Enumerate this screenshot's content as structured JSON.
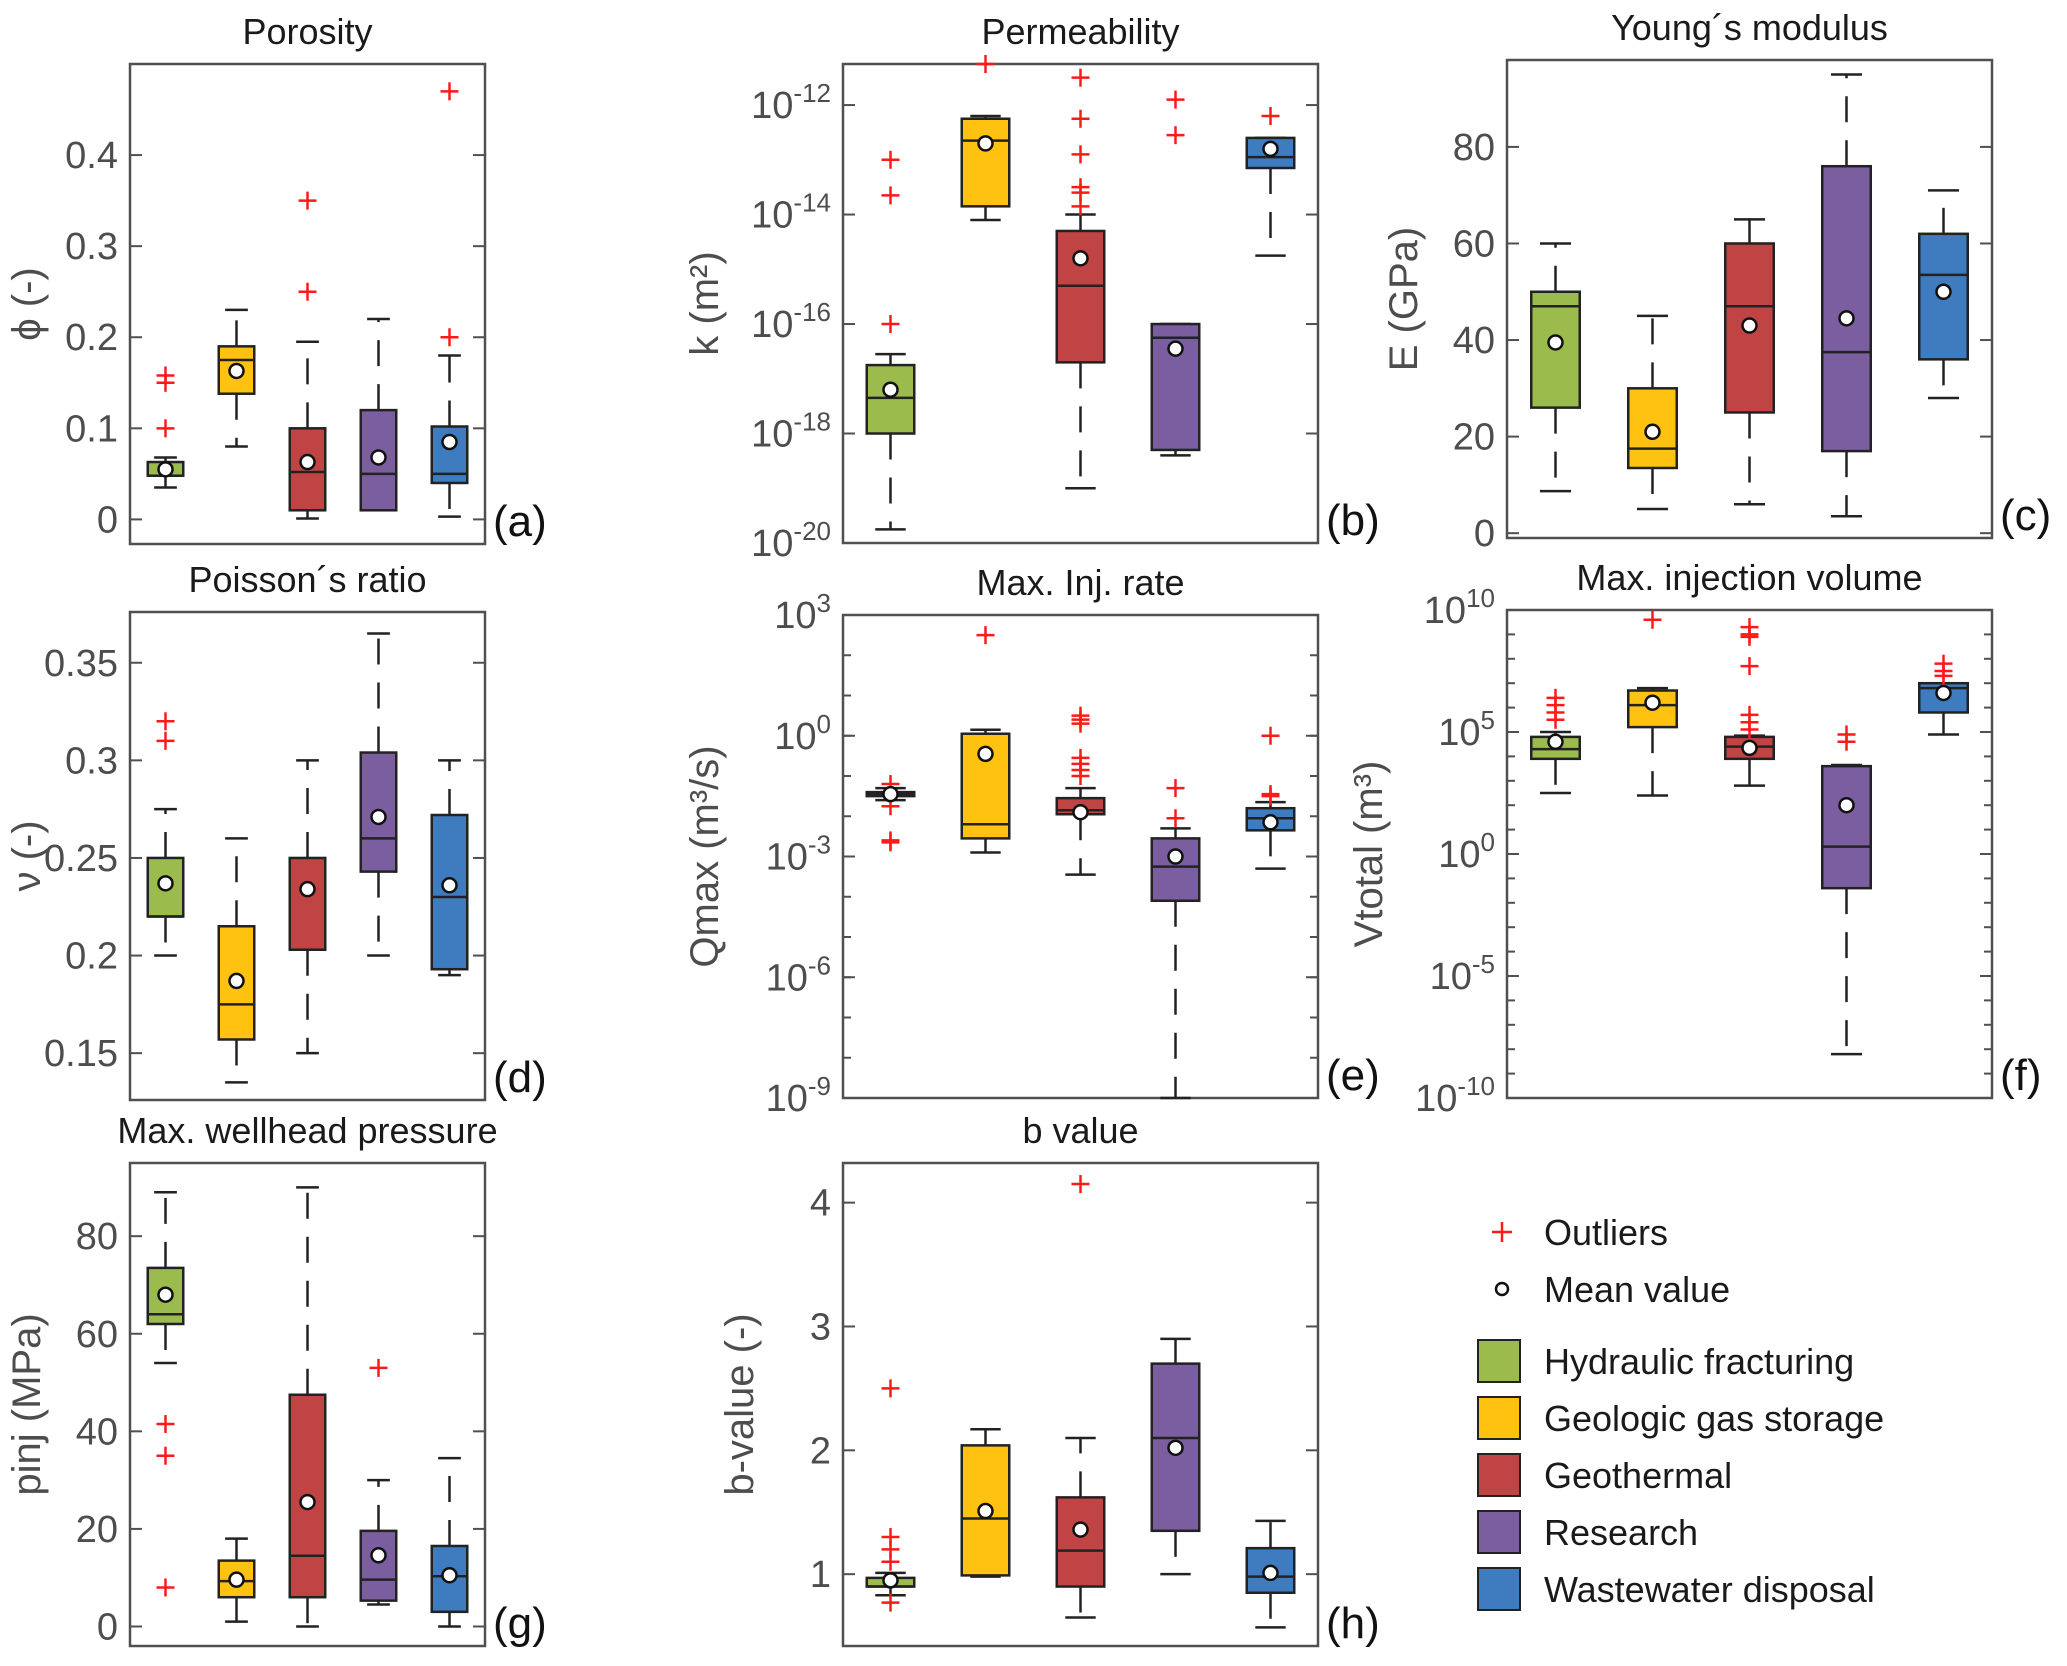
{
  "chart_data": {
    "type": "box",
    "groups": [
      {
        "name": "Hydraulic fracturing",
        "color": "#9BBB4D"
      },
      {
        "name": "Geologic gas storage",
        "color": "#FFC210"
      },
      {
        "name": "Geothermal",
        "color": "#C04444"
      },
      {
        "name": "Research",
        "color": "#7B5EA0"
      },
      {
        "name": "Wastewater disposal",
        "color": "#3F7BBF"
      }
    ],
    "legend": {
      "placement": "bottom-right",
      "outliers_label": "Outliers",
      "mean_label": "Mean value",
      "outlier_color": "#FF1A1A"
    },
    "panels": [
      {
        "id": "a",
        "title": "Porosity",
        "label": "(a)",
        "ylabel": "ϕ (-)",
        "scale": "linear",
        "ylim": [
          -0.027,
          0.5
        ],
        "yticks": [
          0,
          0.1,
          0.2,
          0.3,
          0.4
        ],
        "ytick_labels": [
          "0",
          "0.1",
          "0.2",
          "0.3",
          "0.4"
        ],
        "boxes": [
          {
            "whislo": 0.035,
            "q1": 0.048,
            "med": 0.048,
            "q3": 0.063,
            "whishi": 0.068,
            "mean": 0.055,
            "outliers": [
              0.1,
              0.15,
              0.158
            ]
          },
          {
            "whislo": 0.08,
            "q1": 0.138,
            "med": 0.175,
            "q3": 0.19,
            "whishi": 0.23,
            "mean": 0.163,
            "outliers": []
          },
          {
            "whislo": 0.001,
            "q1": 0.01,
            "med": 0.052,
            "q3": 0.1,
            "whishi": 0.195,
            "mean": 0.063,
            "outliers": [
              0.25,
              0.35
            ]
          },
          {
            "whislo": 0.01,
            "q1": 0.01,
            "med": 0.05,
            "q3": 0.12,
            "whishi": 0.22,
            "mean": 0.068,
            "outliers": []
          },
          {
            "whislo": 0.003,
            "q1": 0.04,
            "med": 0.05,
            "q3": 0.102,
            "whishi": 0.18,
            "mean": 0.085,
            "outliers": [
              0.2,
              0.47
            ]
          }
        ]
      },
      {
        "id": "b",
        "title": "Permeability",
        "label": "(b)",
        "ylabel": "k (m²)",
        "scale": "log",
        "ylim_log10": [
          -20,
          -11.25
        ],
        "yticks_log10": [
          -20,
          -18,
          -16,
          -14,
          -12
        ],
        "ytick_labels": [
          "10^-20",
          "10^-18",
          "10^-16",
          "10^-14",
          "10^-12"
        ],
        "boxes": [
          {
            "whislo": -19.75,
            "q1": -18,
            "med": -17.35,
            "q3": -16.75,
            "whishi": -16.55,
            "mean": -17.2,
            "outliers": [
              -16,
              -13.65,
              -13
            ]
          },
          {
            "whislo": -14.1,
            "q1": -13.85,
            "med": -12.65,
            "q3": -12.25,
            "whishi": -12.2,
            "mean": -12.7,
            "outliers": [
              -11.25
            ]
          },
          {
            "whislo": -19,
            "q1": -16.7,
            "med": -15.3,
            "q3": -14.3,
            "whishi": -14,
            "mean": -14.8,
            "outliers": [
              -11.5,
              -12.25,
              -12.9,
              -13.5,
              -13.6,
              -13.85
            ]
          },
          {
            "whislo": -18.4,
            "q1": -18.3,
            "med": -16.25,
            "q3": -16,
            "whishi": -16,
            "mean": -16.45,
            "outliers": [
              -11.9,
              -12.55
            ]
          },
          {
            "whislo": -14.75,
            "q1": -13.15,
            "med": -12.95,
            "q3": -12.6,
            "whishi": -12.6,
            "mean": -12.8,
            "outliers": [
              -12.2
            ]
          }
        ]
      },
      {
        "id": "c",
        "title": "Young´s modulus",
        "label": "(c)",
        "ylabel": "E (GPa)",
        "scale": "linear",
        "ylim": [
          -1,
          98
        ],
        "yticks": [
          0,
          20,
          40,
          60,
          80
        ],
        "ytick_labels": [
          "0",
          "20",
          "40",
          "60",
          "80"
        ],
        "boxes": [
          {
            "whislo": 8.7,
            "q1": 26,
            "med": 47,
            "q3": 50,
            "whishi": 60,
            "mean": 39.5,
            "outliers": []
          },
          {
            "whislo": 5,
            "q1": 13.5,
            "med": 17.5,
            "q3": 30,
            "whishi": 45,
            "mean": 21,
            "outliers": []
          },
          {
            "whislo": 6,
            "q1": 25,
            "med": 47,
            "q3": 60,
            "whishi": 65,
            "mean": 43,
            "outliers": []
          },
          {
            "whislo": 3.5,
            "q1": 17,
            "med": 37.5,
            "q3": 76,
            "whishi": 95,
            "mean": 44.5,
            "outliers": []
          },
          {
            "whislo": 28,
            "q1": 36,
            "med": 53.5,
            "q3": 62,
            "whishi": 71,
            "mean": 50,
            "outliers": []
          }
        ]
      },
      {
        "id": "d",
        "title": "Poisson´s ratio",
        "label": "(d)",
        "ylabel": "ν (-)",
        "scale": "linear",
        "ylim": [
          0.126,
          0.376
        ],
        "yticks": [
          0.15,
          0.2,
          0.25,
          0.3,
          0.35
        ],
        "ytick_labels": [
          "0.15",
          "0.2",
          "0.25",
          "0.3",
          "0.35"
        ],
        "boxes": [
          {
            "whislo": 0.2,
            "q1": 0.22,
            "med": 0.22,
            "q3": 0.25,
            "whishi": 0.275,
            "mean": 0.237,
            "outliers": [
              0.31,
              0.32
            ]
          },
          {
            "whislo": 0.135,
            "q1": 0.157,
            "med": 0.175,
            "q3": 0.215,
            "whishi": 0.26,
            "mean": 0.187,
            "outliers": []
          },
          {
            "whislo": 0.15,
            "q1": 0.203,
            "med": 0.203,
            "q3": 0.25,
            "whishi": 0.3,
            "mean": 0.234,
            "outliers": []
          },
          {
            "whislo": 0.2,
            "q1": 0.243,
            "med": 0.26,
            "q3": 0.304,
            "whishi": 0.365,
            "mean": 0.271,
            "outliers": []
          },
          {
            "whislo": 0.19,
            "q1": 0.193,
            "med": 0.23,
            "q3": 0.272,
            "whishi": 0.3,
            "mean": 0.236,
            "outliers": []
          }
        ]
      },
      {
        "id": "e",
        "title": "Max. Inj. rate",
        "label": "(e)",
        "ylabel": "Qmax (m³/s)",
        "scale": "log",
        "ylim_log10": [
          -9,
          3
        ],
        "yticks_log10": [
          -9,
          -6,
          -3,
          0,
          3
        ],
        "ytick_labels": [
          "10^-9",
          "10^-6",
          "10^-3",
          "10^0",
          "10^3"
        ],
        "boxes": [
          {
            "whislo": -1.6,
            "q1": -1.5,
            "med": -1.45,
            "q3": -1.4,
            "whishi": -1.3,
            "mean": -1.45,
            "outliers": [
              -1.2,
              -1.75,
              -2.6,
              -2.65
            ]
          },
          {
            "whislo": -2.9,
            "q1": -2.55,
            "med": -2.2,
            "q3": 0.05,
            "whishi": 0.15,
            "mean": -0.45,
            "outliers": [
              2.5
            ]
          },
          {
            "whislo": -3.45,
            "q1": -1.95,
            "med": -1.85,
            "q3": -1.55,
            "whishi": -1.3,
            "mean": -1.9,
            "outliers": [
              -1.0,
              -0.85,
              -0.7,
              -0.55,
              0.3,
              0.4,
              0.5
            ]
          },
          {
            "whislo": -9,
            "q1": -4.1,
            "med": -3.25,
            "q3": -2.55,
            "whishi": -2.3,
            "mean": -3.0,
            "outliers": [
              -2.05,
              -1.3
            ]
          },
          {
            "whislo": -3.3,
            "q1": -2.35,
            "med": -2.05,
            "q3": -1.8,
            "whishi": -1.65,
            "mean": -2.15,
            "outliers": [
              -1.5,
              -1.45,
              0
            ]
          }
        ]
      },
      {
        "id": "f",
        "title": "Max. injection volume",
        "label": "(f)",
        "ylabel": "Vtotal (m³)",
        "scale": "log",
        "ylim_log10": [
          -10,
          10
        ],
        "yticks_log10": [
          -10,
          -5,
          0,
          5,
          10
        ],
        "ytick_labels": [
          "10^-10",
          "10^-5",
          "10^0",
          "10^5",
          "10^10"
        ],
        "boxes": [
          {
            "whislo": 2.5,
            "q1": 3.9,
            "med": 4.3,
            "q3": 4.8,
            "whishi": 5.0,
            "mean": 4.6,
            "outliers": [
              5.5,
              5.8,
              6.1,
              6.4
            ]
          },
          {
            "whislo": 2.4,
            "q1": 5.2,
            "med": 6.1,
            "q3": 6.7,
            "whishi": 6.8,
            "mean": 6.2,
            "outliers": [
              9.6
            ]
          },
          {
            "whislo": 2.8,
            "q1": 3.9,
            "med": 4.4,
            "q3": 4.8,
            "whishi": 4.85,
            "mean": 4.35,
            "outliers": [
              5.1,
              5.4,
              5.7,
              7.7,
              8.9,
              9.0,
              9.3
            ]
          },
          {
            "whislo": -8.2,
            "q1": -1.4,
            "med": 0.3,
            "q3": 3.6,
            "whishi": 3.65,
            "mean": 2.0,
            "outliers": [
              4.6,
              4.9
            ]
          },
          {
            "whislo": 4.9,
            "q1": 5.8,
            "med": 6.8,
            "q3": 7.0,
            "whishi": 7.0,
            "mean": 6.6,
            "outliers": [
              7.3,
              7.5,
              7.8
            ]
          }
        ]
      },
      {
        "id": "g",
        "title": "Max. wellhead pressure",
        "label": "(g)",
        "ylabel": "pinj (MPa)",
        "scale": "linear",
        "ylim": [
          -4,
          95
        ],
        "yticks": [
          0,
          20,
          40,
          60,
          80
        ],
        "ytick_labels": [
          "0",
          "20",
          "40",
          "60",
          "80"
        ],
        "boxes": [
          {
            "whislo": 54,
            "q1": 62,
            "med": 64,
            "q3": 73.5,
            "whishi": 89,
            "mean": 68,
            "outliers": [
              8,
              35,
              41.5
            ]
          },
          {
            "whislo": 1,
            "q1": 6,
            "med": 9.3,
            "q3": 13.5,
            "whishi": 18,
            "mean": 9.6,
            "outliers": []
          },
          {
            "whislo": 0,
            "q1": 6,
            "med": 14.5,
            "q3": 47.5,
            "whishi": 90,
            "mean": 25.5,
            "outliers": []
          },
          {
            "whislo": 4.5,
            "q1": 5.3,
            "med": 9.6,
            "q3": 19.6,
            "whishi": 30,
            "mean": 14.6,
            "outliers": [
              53
            ]
          },
          {
            "whislo": 0,
            "q1": 3,
            "med": 10.3,
            "q3": 16.5,
            "whishi": 34.5,
            "mean": 10.5,
            "outliers": []
          }
        ]
      },
      {
        "id": "h",
        "title": "b value",
        "label": "(h)",
        "ylabel": "b-value (-)",
        "scale": "linear",
        "ylim": [
          0.42,
          4.32
        ],
        "yticks": [
          1,
          2,
          3,
          4
        ],
        "ytick_labels": [
          "1",
          "2",
          "3",
          "4"
        ],
        "boxes": [
          {
            "whislo": 0.83,
            "q1": 0.9,
            "med": 0.9,
            "q3": 0.97,
            "whishi": 1.01,
            "mean": 0.95,
            "outliers": [
              0.77,
              1.1,
              1.2,
              1.3,
              2.5
            ]
          },
          {
            "whislo": 0.98,
            "q1": 0.99,
            "med": 1.45,
            "q3": 2.04,
            "whishi": 2.17,
            "mean": 1.51,
            "outliers": []
          },
          {
            "whislo": 0.65,
            "q1": 0.9,
            "med": 1.19,
            "q3": 1.62,
            "whishi": 2.1,
            "mean": 1.36,
            "outliers": [
              4.15
            ]
          },
          {
            "whislo": 1.0,
            "q1": 1.35,
            "med": 2.1,
            "q3": 2.7,
            "whishi": 2.9,
            "mean": 2.02,
            "outliers": []
          },
          {
            "whislo": 0.57,
            "q1": 0.85,
            "med": 0.98,
            "q3": 1.21,
            "whishi": 1.43,
            "mean": 1.01,
            "outliers": []
          }
        ]
      }
    ]
  }
}
